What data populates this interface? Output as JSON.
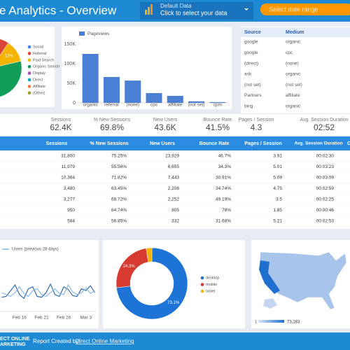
{
  "header": {
    "title": "e Analytics - Overview",
    "data_control": {
      "label": "Default Data",
      "hint": "Click to select your data"
    },
    "date_button": "Select date range"
  },
  "chart_data": [
    {
      "type": "pie",
      "categories": [
        "Social",
        "Referral",
        "Paid Search",
        "Organic Search",
        "Display",
        "Direct",
        "Affiliate",
        "(Other)"
      ],
      "values": [
        20,
        33,
        12,
        25,
        2,
        5,
        2,
        1
      ],
      "value_labels": [
        null,
        null,
        "12%",
        null,
        null,
        null,
        null,
        null
      ],
      "colors": [
        "#4285f4",
        "#db4437",
        "#f4b400",
        "#0f9d58",
        "#ab47bc",
        "#00acc1",
        "#ff7043",
        "#9e9d24"
      ]
    },
    {
      "type": "bar",
      "series": [
        {
          "name": "Pageviews",
          "color": "#4a7fd4",
          "values": [
            125000,
            66000,
            57000,
            25000,
            18000,
            4000,
            2000
          ]
        }
      ],
      "categories": [
        "organic",
        "referral",
        "(none)",
        "cpc",
        "affiliate",
        "(not set)",
        "cpm"
      ],
      "ylim": [
        0,
        150000
      ],
      "yticks": [
        {
          "value": 0,
          "label": "0"
        },
        {
          "value": 50000,
          "label": "50K"
        },
        {
          "value": 100000,
          "label": "100K"
        },
        {
          "value": 150000,
          "label": "150K"
        }
      ],
      "grid": false
    },
    {
      "type": "line",
      "categories": [
        null,
        null,
        null,
        null,
        "Feb 16",
        null,
        null,
        null,
        null,
        "Feb 21",
        null,
        null,
        null,
        null,
        "Feb 26",
        null,
        null,
        null,
        null,
        "Mar 3",
        null,
        null
      ],
      "ylim": [
        0,
        100
      ],
      "series": [
        {
          "color": "#1f5fb0",
          "values": [
            28,
            30,
            45,
            60,
            35,
            25,
            50,
            55,
            30,
            28,
            40,
            62,
            35,
            30,
            55,
            48,
            32,
            30,
            50,
            45,
            58,
            40
          ]
        },
        {
          "name": "Users (previous 28 days)",
          "color": "#7fb6ea",
          "values": [
            40,
            35,
            30,
            40,
            55,
            38,
            30,
            45,
            50,
            35,
            30,
            40,
            50,
            38,
            35,
            60,
            42,
            35,
            40,
            52,
            38,
            45
          ]
        }
      ]
    },
    {
      "type": "donut",
      "categories": [
        "desktop",
        "mobile",
        "tablet"
      ],
      "values": [
        73.1,
        24.3,
        2.6
      ],
      "value_labels": [
        "73.1%",
        "24.3%",
        null
      ],
      "colors": [
        "#1e74d6",
        "#d73a2e",
        "#f4b400"
      ]
    }
  ],
  "source_table": {
    "headers": [
      "Source",
      "Medium"
    ],
    "rows": [
      [
        "google",
        "organic"
      ],
      [
        "google",
        "cpc"
      ],
      [
        "(direct)",
        "(none)"
      ],
      [
        "ask",
        "organic"
      ],
      [
        "(not set)",
        "(not set)"
      ],
      [
        "Partners",
        "affiliate"
      ],
      [
        "bing",
        "organic"
      ]
    ]
  },
  "scorecards": [
    {
      "label": "Sessions",
      "value": "62.4K"
    },
    {
      "label": "% New Sessions",
      "value": "69.8%"
    },
    {
      "label": "New Users",
      "value": "43.6K"
    },
    {
      "label": "Bounce Rate",
      "value": "41.5%"
    },
    {
      "label": "Pages / Session",
      "value": "4.3"
    },
    {
      "label": "Avg. Session Duration",
      "value": "02:52"
    }
  ],
  "table": {
    "headers": [
      "Sessions",
      "% New Sessions",
      "New Users",
      "Bounce Rate",
      "Pages / Session",
      "Avg. Session Duration",
      "G"
    ],
    "rows": [
      [
        "31,800",
        "75.25%",
        "23,929",
        "46.7%",
        "3.91",
        "00:02:30"
      ],
      [
        "11,979",
        "55.56%",
        "6,655",
        "34.3%",
        "5.01",
        "00:03:23"
      ],
      [
        "10,364",
        "71.82%",
        "7,443",
        "30.91%",
        "5.09",
        "00:03:09"
      ],
      [
        "3,480",
        "63.45%",
        "2,208",
        "34.74%",
        "4.75",
        "00:02:59"
      ],
      [
        "3,277",
        "68.72%",
        "2,252",
        "49.19%",
        "3.5",
        "00:02:25"
      ],
      [
        "950",
        "84.74%",
        "805",
        "78%",
        "1.85",
        "00:00:46"
      ],
      [
        "584",
        "56.85%",
        "332",
        "31.68%",
        "5.21",
        "00:02:53"
      ]
    ]
  },
  "map": {
    "legend_min": "1",
    "legend_max": "73,183"
  },
  "footer": {
    "logo": [
      "ECT ONLINE",
      "ARKETING"
    ],
    "credit": "Report Created by:",
    "link": "Direct Online Marketing"
  }
}
